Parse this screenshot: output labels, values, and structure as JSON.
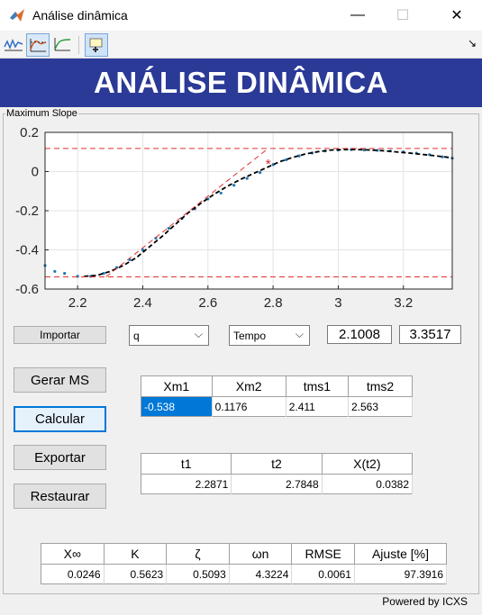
{
  "window": {
    "title": "Análise dinâmica",
    "minimize": "—",
    "maximize": "☐",
    "close": "✕"
  },
  "toolbar": {
    "icons": [
      "plot-signal-icon",
      "step-response-icon",
      "rise-curve-icon",
      "data-cursor-icon"
    ],
    "overflow_icon": "↘"
  },
  "header": {
    "title": "ANÁLISE DINÂMICA",
    "bg_color": "#2b3a96"
  },
  "panel": {
    "title": "Maximum Slope"
  },
  "chart_data": {
    "type": "line",
    "xlim": [
      2.1,
      3.35
    ],
    "ylim": [
      -0.6,
      0.2
    ],
    "xticks": [
      "2.2",
      "2.4",
      "2.6",
      "2.8",
      "3",
      "3.2"
    ],
    "xtick_values": [
      2.2,
      2.4,
      2.6,
      2.8,
      3.0,
      3.2
    ],
    "yticks": [
      "0.2",
      "0",
      "-0.2",
      "-0.4",
      "-0.6"
    ],
    "ytick_values": [
      0.2,
      0,
      -0.2,
      -0.4,
      -0.6
    ],
    "grid": true,
    "series": [
      {
        "style": "dots",
        "color": "#1f77b4",
        "x": [
          2.1,
          2.13,
          2.16,
          2.2,
          2.24,
          2.28,
          2.32,
          2.36,
          2.4,
          2.44,
          2.48,
          2.52,
          2.56,
          2.6,
          2.64,
          2.68,
          2.72,
          2.76,
          2.8,
          2.84,
          2.88,
          2.92,
          2.96,
          3.0,
          3.04,
          3.08,
          3.12,
          3.16,
          3.2,
          3.24,
          3.28,
          3.32,
          3.35
        ],
        "y": [
          -0.48,
          -0.51,
          -0.52,
          -0.535,
          -0.535,
          -0.52,
          -0.49,
          -0.45,
          -0.4,
          -0.34,
          -0.29,
          -0.24,
          -0.19,
          -0.14,
          -0.11,
          -0.07,
          -0.035,
          -0.005,
          0.035,
          0.06,
          0.08,
          0.095,
          0.105,
          0.11,
          0.112,
          0.11,
          0.108,
          0.105,
          0.1,
          0.094,
          0.086,
          0.075,
          0.068
        ]
      },
      {
        "style": "dashed",
        "color": "#000000",
        "x": [
          2.22,
          2.26,
          2.3,
          2.34,
          2.38,
          2.42,
          2.46,
          2.5,
          2.54,
          2.58,
          2.62,
          2.66,
          2.7,
          2.74,
          2.78,
          2.82,
          2.86,
          2.9,
          2.94,
          2.98,
          3.02,
          3.06,
          3.1,
          3.14,
          3.18,
          3.22,
          3.26,
          3.3,
          3.35
        ],
        "y": [
          -0.535,
          -0.53,
          -0.51,
          -0.48,
          -0.44,
          -0.385,
          -0.33,
          -0.27,
          -0.21,
          -0.16,
          -0.115,
          -0.075,
          -0.04,
          -0.01,
          0.02,
          0.05,
          0.072,
          0.09,
          0.102,
          0.11,
          0.112,
          0.112,
          0.11,
          0.106,
          0.1,
          0.094,
          0.087,
          0.08,
          0.07
        ]
      },
      {
        "style": "dashed",
        "color": "#e03030",
        "x": [
          2.1,
          3.35
        ],
        "y": [
          0.1176,
          0.1176
        ]
      },
      {
        "style": "dashed",
        "color": "#e03030",
        "x": [
          2.1,
          3.35
        ],
        "y": [
          -0.538,
          -0.538
        ]
      },
      {
        "style": "dashed",
        "color": "#e03030",
        "x": [
          2.2871,
          2.7848
        ],
        "y": [
          -0.538,
          0.1176
        ]
      }
    ],
    "marker": {
      "x": 2.7848,
      "y": 0.0382,
      "symbol": "*",
      "color": "#d62728"
    }
  },
  "controls": {
    "import_label": "Importar",
    "signal_select": "q",
    "time_select": "Tempo",
    "t_start": "2.1008",
    "t_end": "3.3517",
    "gerar_ms_label": "Gerar MS",
    "calcular_label": "Calcular",
    "exportar_label": "Exportar",
    "restaurar_label": "Restaurar"
  },
  "table_xm": {
    "headers": [
      "Xm1",
      "Xm2",
      "tms1",
      "tms2"
    ],
    "row": [
      "-0.538",
      "0.1176",
      "2.411",
      "2.563"
    ]
  },
  "table_t": {
    "headers": [
      "t1",
      "t2",
      "X(t2)"
    ],
    "row": [
      "2.2871",
      "2.7848",
      "0.0382"
    ]
  },
  "table_result": {
    "headers": [
      "X∞",
      "K",
      "ζ",
      "ωn",
      "RMSE",
      "Ajuste [%]"
    ],
    "row": [
      "0.0246",
      "0.5623",
      "0.5093",
      "4.3224",
      "0.0061",
      "97.3916"
    ]
  },
  "footer": {
    "powered": "Powered by ICXS"
  }
}
